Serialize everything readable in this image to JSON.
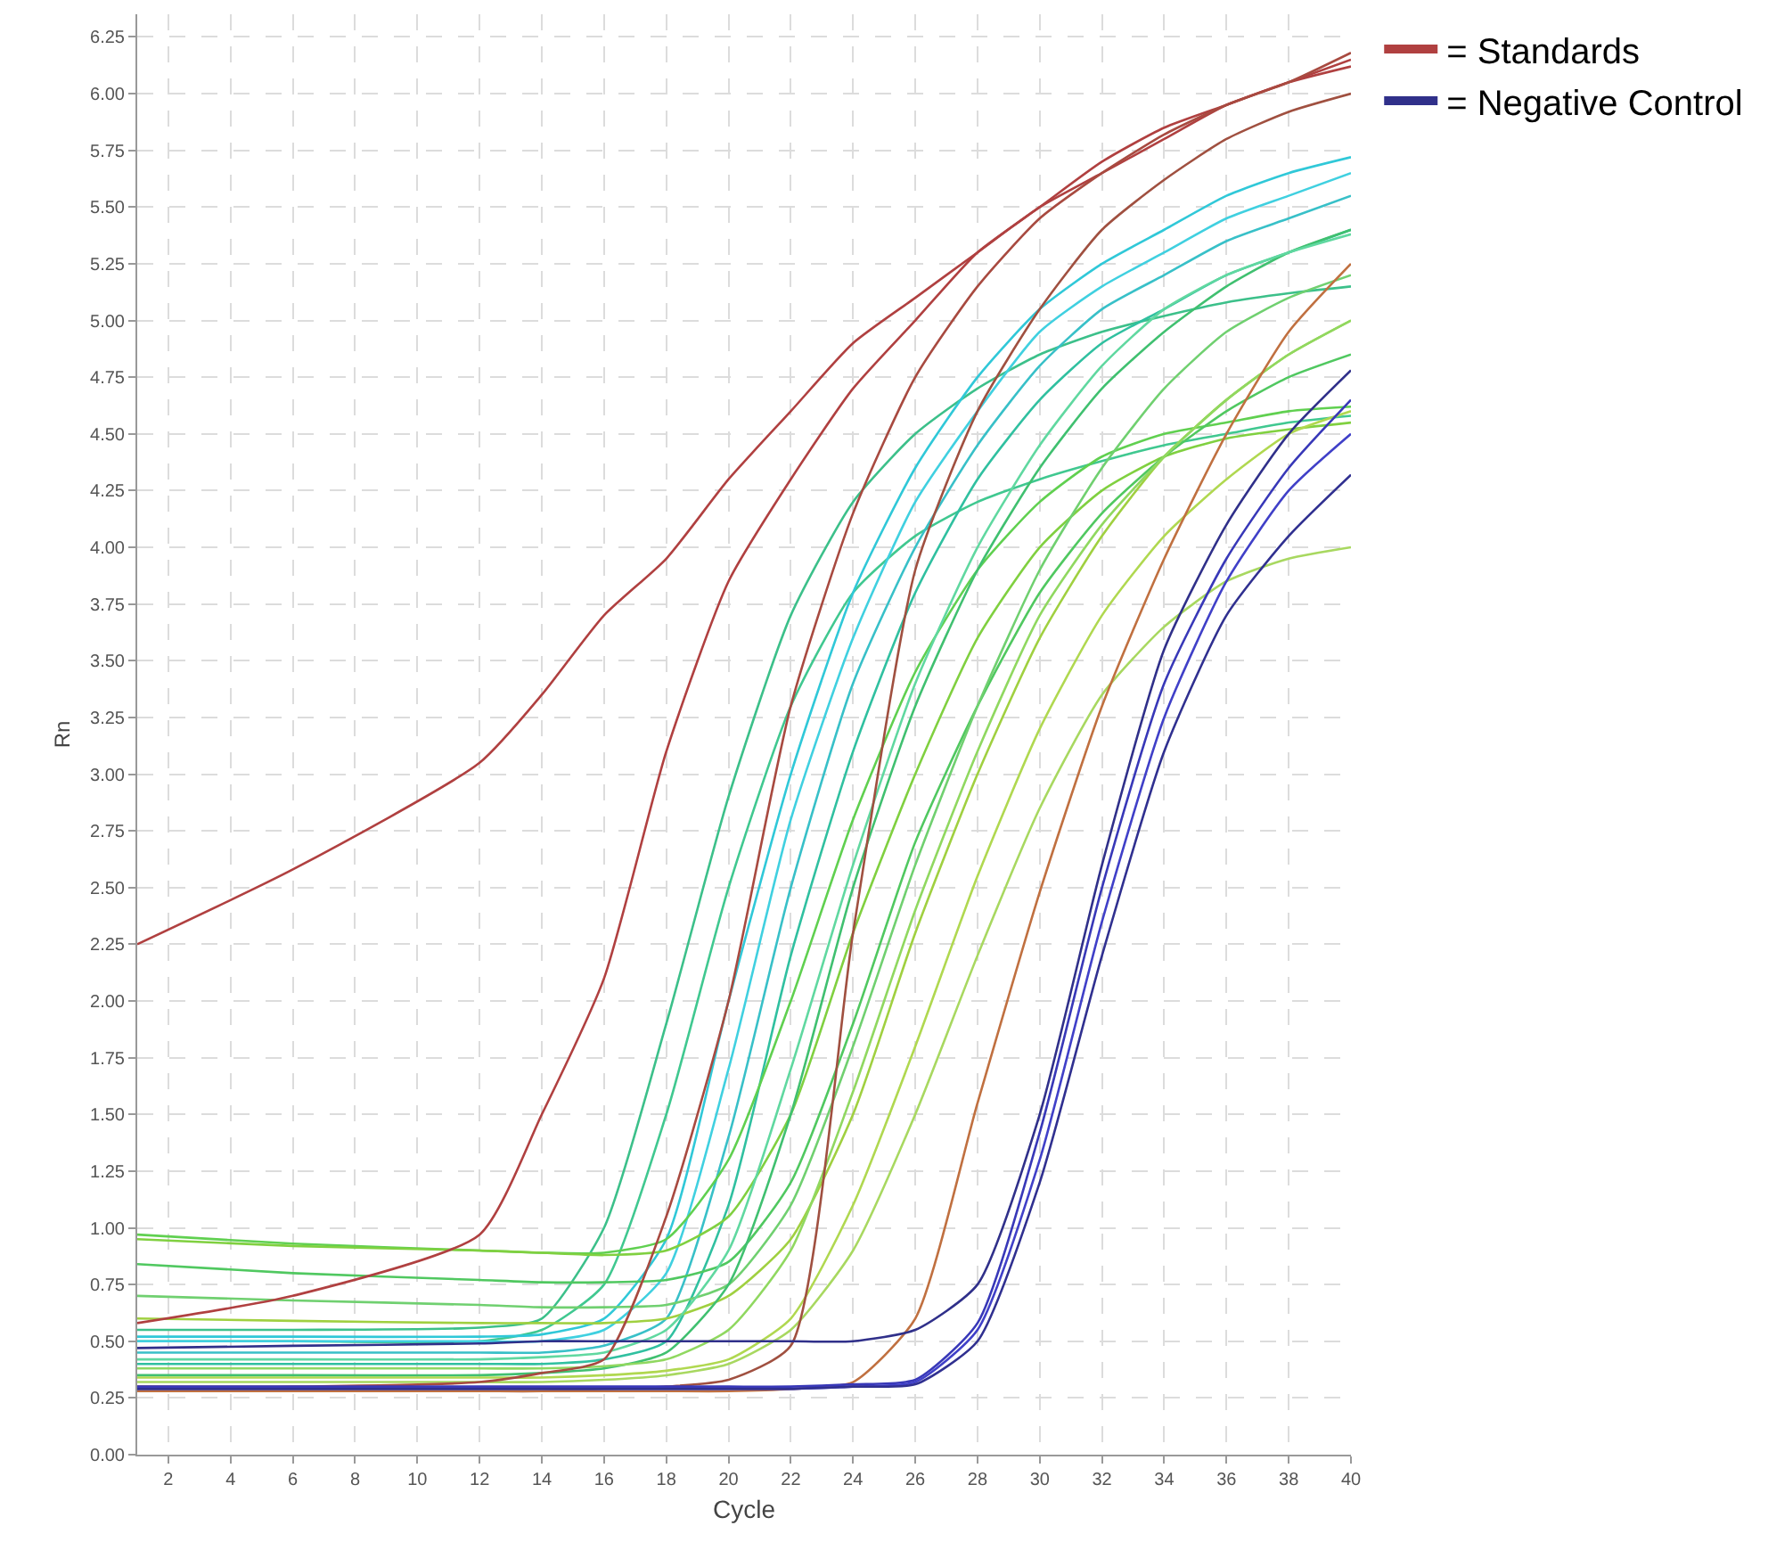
{
  "chart_data": {
    "type": "line",
    "xlabel": "Cycle",
    "ylabel": "Rn",
    "x": [
      1,
      6,
      12,
      14,
      16,
      18,
      20,
      22,
      24,
      26,
      28,
      30,
      32,
      34,
      36,
      38,
      40
    ],
    "xlim": [
      1,
      40
    ],
    "xticks": [
      2,
      4,
      6,
      8,
      10,
      12,
      14,
      16,
      18,
      20,
      22,
      24,
      26,
      28,
      30,
      32,
      34,
      36,
      38,
      40
    ],
    "ylim": [
      0,
      6.35
    ],
    "yticks": [
      {
        "value": 0,
        "label": "0.00"
      },
      {
        "value": 0.25,
        "label": "0.25"
      },
      {
        "value": 0.5,
        "label": "0.50"
      },
      {
        "value": 0.75,
        "label": "0.75"
      },
      {
        "value": 1,
        "label": "1.00"
      },
      {
        "value": 1.25,
        "label": "1.25"
      },
      {
        "value": 1.5,
        "label": "1.50"
      },
      {
        "value": 1.75,
        "label": "1.75"
      },
      {
        "value": 2,
        "label": "2.00"
      },
      {
        "value": 2.25,
        "label": "2.25"
      },
      {
        "value": 2.5,
        "label": "2.50"
      },
      {
        "value": 2.75,
        "label": "2.75"
      },
      {
        "value": 3,
        "label": "3.00"
      },
      {
        "value": 3.25,
        "label": "3.25"
      },
      {
        "value": 3.5,
        "label": "3.50"
      },
      {
        "value": 3.75,
        "label": "3.75"
      },
      {
        "value": 4,
        "label": "4.00"
      },
      {
        "value": 4.25,
        "label": "4.25"
      },
      {
        "value": 4.5,
        "label": "4.50"
      },
      {
        "value": 4.75,
        "label": "4.75"
      },
      {
        "value": 5,
        "label": "5.00"
      },
      {
        "value": 5.25,
        "label": "5.25"
      },
      {
        "value": 5.5,
        "label": "5.50"
      },
      {
        "value": 5.75,
        "label": "5.75"
      },
      {
        "value": 6,
        "label": "6.00"
      },
      {
        "value": 6.25,
        "label": "6.25"
      }
    ],
    "grid": true,
    "legend": "top right",
    "marker": "none",
    "line_style": "solid",
    "series": [
      {
        "color": "#3cc08a",
        "values": [
          0.55,
          0.55,
          0.56,
          0.6,
          1.0,
          1.9,
          2.9,
          3.7,
          4.2,
          4.5,
          4.7,
          4.85,
          4.95,
          5.02,
          5.08,
          5.12,
          5.15
        ]
      },
      {
        "color": "#40c890",
        "values": [
          0.5,
          0.5,
          0.5,
          0.55,
          0.75,
          1.5,
          2.5,
          3.3,
          3.8,
          4.05,
          4.2,
          4.3,
          4.38,
          4.45,
          4.5,
          4.55,
          4.58
        ]
      },
      {
        "color": "#30c8d8",
        "values": [
          0.52,
          0.52,
          0.52,
          0.53,
          0.6,
          0.95,
          2.0,
          3.0,
          3.8,
          4.35,
          4.75,
          5.05,
          5.25,
          5.4,
          5.55,
          5.65,
          5.72
        ]
      },
      {
        "color": "#40d0e0",
        "values": [
          0.5,
          0.5,
          0.5,
          0.5,
          0.55,
          0.8,
          1.7,
          2.8,
          3.6,
          4.2,
          4.6,
          4.95,
          5.15,
          5.3,
          5.45,
          5.55,
          5.65
        ]
      },
      {
        "color": "#38c0c8",
        "values": [
          0.45,
          0.45,
          0.45,
          0.45,
          0.48,
          0.6,
          1.4,
          2.5,
          3.4,
          4.0,
          4.45,
          4.8,
          5.05,
          5.2,
          5.35,
          5.45,
          5.55
        ]
      },
      {
        "color": "#30c0a0",
        "values": [
          0.4,
          0.4,
          0.4,
          0.4,
          0.42,
          0.5,
          1.1,
          2.2,
          3.1,
          3.8,
          4.3,
          4.65,
          4.9,
          5.05,
          5.2,
          5.3,
          5.4
        ]
      },
      {
        "color": "#60d050",
        "values": [
          0.97,
          0.93,
          0.9,
          0.89,
          0.89,
          0.95,
          1.3,
          2.0,
          2.8,
          3.45,
          3.9,
          4.2,
          4.4,
          4.5,
          4.55,
          4.6,
          4.62
        ]
      },
      {
        "color": "#80d040",
        "values": [
          0.95,
          0.92,
          0.9,
          0.89,
          0.88,
          0.9,
          1.05,
          1.5,
          2.3,
          3.0,
          3.6,
          4.0,
          4.25,
          4.4,
          4.48,
          4.52,
          4.55
        ]
      },
      {
        "color": "#50c860",
        "values": [
          0.84,
          0.8,
          0.77,
          0.76,
          0.76,
          0.77,
          0.85,
          1.2,
          1.9,
          2.7,
          3.3,
          3.8,
          4.15,
          4.4,
          4.6,
          4.75,
          4.85
        ]
      },
      {
        "color": "#70d070",
        "values": [
          0.7,
          0.68,
          0.66,
          0.65,
          0.65,
          0.66,
          0.75,
          1.1,
          1.8,
          2.6,
          3.3,
          3.9,
          4.35,
          4.7,
          4.95,
          5.1,
          5.2
        ]
      },
      {
        "color": "#a0d040",
        "values": [
          0.6,
          0.59,
          0.58,
          0.58,
          0.58,
          0.6,
          0.7,
          0.95,
          1.5,
          2.3,
          3.0,
          3.6,
          4.05,
          4.4,
          4.65,
          4.85,
          5.0
        ]
      },
      {
        "color": "#40c070",
        "values": [
          0.35,
          0.35,
          0.35,
          0.36,
          0.38,
          0.45,
          0.75,
          1.5,
          2.5,
          3.3,
          3.9,
          4.35,
          4.7,
          4.95,
          5.15,
          5.3,
          5.4
        ]
      },
      {
        "color": "#90d860",
        "values": [
          0.38,
          0.38,
          0.38,
          0.38,
          0.39,
          0.42,
          0.55,
          0.9,
          1.6,
          2.4,
          3.1,
          3.7,
          4.1,
          4.4,
          4.65,
          4.85,
          5.0
        ]
      },
      {
        "color": "#b0d850",
        "values": [
          0.34,
          0.34,
          0.34,
          0.34,
          0.35,
          0.37,
          0.42,
          0.6,
          1.1,
          1.8,
          2.55,
          3.2,
          3.7,
          4.05,
          4.3,
          4.5,
          4.6
        ]
      },
      {
        "color": "#a8d860",
        "values": [
          0.32,
          0.32,
          0.32,
          0.32,
          0.33,
          0.35,
          0.4,
          0.55,
          0.9,
          1.5,
          2.2,
          2.85,
          3.35,
          3.65,
          3.85,
          3.95,
          4.0
        ]
      },
      {
        "color": "#60d8a0",
        "values": [
          0.42,
          0.42,
          0.42,
          0.43,
          0.45,
          0.55,
          0.9,
          1.7,
          2.6,
          3.4,
          4.0,
          4.45,
          4.8,
          5.05,
          5.2,
          5.3,
          5.38
        ]
      },
      {
        "name": "= Standards",
        "color": "#b04040",
        "values": [
          2.25,
          2.58,
          3.05,
          3.35,
          3.7,
          3.95,
          4.3,
          4.6,
          4.9,
          5.1,
          5.3,
          5.5,
          5.65,
          5.8,
          5.95,
          6.05,
          6.15
        ]
      },
      {
        "color": "#b04040",
        "values": [
          0.58,
          0.7,
          0.97,
          1.5,
          2.1,
          3.1,
          3.85,
          4.3,
          4.7,
          5.0,
          5.3,
          5.5,
          5.7,
          5.85,
          5.95,
          6.05,
          6.12
        ]
      },
      {
        "color": "#a84a40",
        "values": [
          0.3,
          0.3,
          0.32,
          0.36,
          0.42,
          1.05,
          2.0,
          3.3,
          4.15,
          4.75,
          5.15,
          5.45,
          5.65,
          5.82,
          5.95,
          6.05,
          6.18
        ]
      },
      {
        "color": "#a05040",
        "values": [
          0.28,
          0.28,
          0.28,
          0.28,
          0.29,
          0.3,
          0.33,
          0.48,
          2.3,
          3.9,
          4.6,
          5.05,
          5.4,
          5.62,
          5.8,
          5.92,
          6.0
        ]
      },
      {
        "color": "#c07040",
        "values": [
          0.28,
          0.28,
          0.28,
          0.28,
          0.28,
          0.28,
          0.28,
          0.29,
          0.32,
          0.6,
          1.55,
          2.48,
          3.3,
          3.95,
          4.5,
          4.95,
          5.25
        ]
      },
      {
        "name": "= Negative Control",
        "color": "#30308a",
        "values": [
          0.47,
          0.48,
          0.49,
          0.5,
          0.5,
          0.5,
          0.5,
          0.5,
          0.5,
          0.55,
          0.75,
          1.5,
          2.6,
          3.55,
          4.1,
          4.5,
          4.78
        ]
      },
      {
        "color": "#3838b8",
        "values": [
          0.3,
          0.3,
          0.3,
          0.3,
          0.3,
          0.3,
          0.3,
          0.3,
          0.31,
          0.33,
          0.58,
          1.42,
          2.5,
          3.4,
          3.95,
          4.35,
          4.65
        ]
      },
      {
        "color": "#4040c8",
        "values": [
          0.29,
          0.29,
          0.29,
          0.29,
          0.29,
          0.29,
          0.29,
          0.29,
          0.3,
          0.32,
          0.55,
          1.3,
          2.35,
          3.25,
          3.85,
          4.25,
          4.5
        ]
      },
      {
        "color": "#303090",
        "values": [
          0.29,
          0.29,
          0.29,
          0.29,
          0.29,
          0.29,
          0.29,
          0.29,
          0.3,
          0.31,
          0.5,
          1.2,
          2.2,
          3.1,
          3.7,
          4.05,
          4.32
        ]
      }
    ]
  }
}
